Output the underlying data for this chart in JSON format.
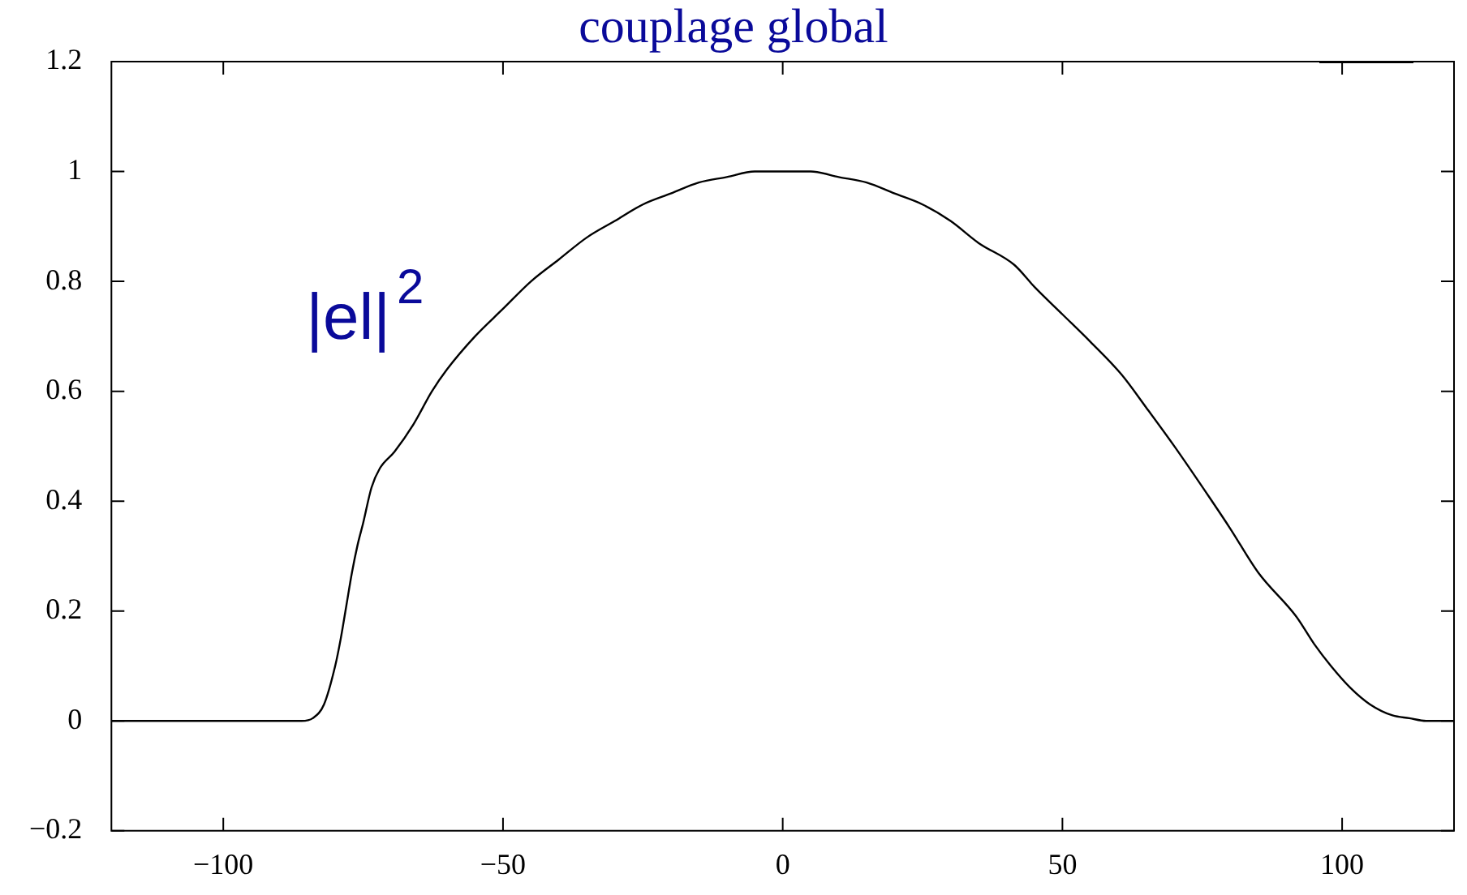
{
  "chart_data": {
    "type": "line",
    "title": "couplage global",
    "x": [
      -120,
      -100,
      -90,
      -86,
      -84,
      -82,
      -80,
      -79,
      -78,
      -77,
      -76,
      -75,
      -73.5,
      -72,
      -69.4,
      -66,
      -62.7,
      -60,
      -55,
      -50,
      -45,
      -40,
      -35,
      -30,
      -25,
      -20,
      -15,
      -10,
      -5,
      0,
      5,
      10,
      15,
      20,
      25,
      30,
      35,
      41.4,
      45,
      50,
      55,
      60.6,
      65,
      70,
      76.4,
      80,
      85,
      91.8,
      95,
      98,
      101.5,
      105,
      109,
      112,
      115,
      120
    ],
    "series": [
      {
        "color": "#000000",
        "values": [
          0,
          0,
          0,
          0,
          0.005,
          0.03,
          0.1,
          0.15,
          0.21,
          0.27,
          0.32,
          0.36,
          0.425,
          0.46,
          0.49,
          0.54,
          0.6,
          0.64,
          0.7,
          0.75,
          0.8,
          0.84,
          0.88,
          0.91,
          0.94,
          0.96,
          0.98,
          0.99,
          1,
          1,
          1,
          0.99,
          0.98,
          0.96,
          0.94,
          0.91,
          0.87,
          0.83,
          0.79,
          0.74,
          0.69,
          0.63,
          0.57,
          0.5,
          0.405,
          0.35,
          0.27,
          0.19,
          0.14,
          0.1,
          0.06,
          0.03,
          0.01,
          0.005,
          0,
          0
        ]
      }
    ],
    "xlim": [
      -120,
      120
    ],
    "xticks": [
      {
        "value": -100,
        "label": "−100"
      },
      {
        "value": -50,
        "label": "−50"
      },
      0,
      50,
      100
    ],
    "ylim": [
      -0.2,
      1.2
    ],
    "yticks": [
      {
        "value": -0.2,
        "label": "−0.2"
      },
      0,
      0.2,
      0.4,
      0.6,
      0.8,
      1,
      1.2
    ],
    "grid": false,
    "marker": "none",
    "line_style": "solid",
    "annotations": [
      "|el|$^{2}$"
    ]
  }
}
